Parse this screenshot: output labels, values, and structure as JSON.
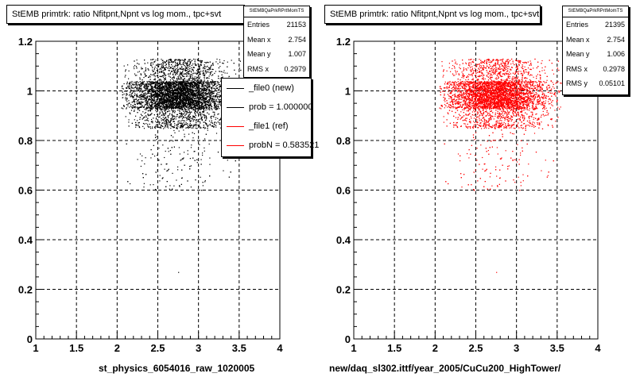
{
  "footer_text": "",
  "chart_data": [
    {
      "type": "scatter",
      "title": "StEMB primtrk: ratio Nfitpnt,Npnt vs log mom., tpc+svt",
      "xlabel": "st_physics_6054016_raw_1020005",
      "ylabel": "",
      "xlim": [
        1,
        4
      ],
      "ylim": [
        0,
        1.2
      ],
      "x_ticks": [
        "1",
        "1.5",
        "2",
        "2.5",
        "3",
        "3.5",
        "4"
      ],
      "y_ticks": [
        "0",
        "0.2",
        "0.4",
        "0.6",
        "0.8",
        "1",
        "1.2"
      ],
      "grid": true,
      "marker_color": "#000000",
      "distribution": {
        "x_range": [
          2.05,
          3.55
        ],
        "core_y": [
          0.93,
          1.04
        ],
        "band_y": [
          0.85,
          1.13
        ],
        "center_x": 2.75
      },
      "stats": {
        "name": "StEMBQaPrkRPrtMomTS",
        "rows": [
          {
            "label": "Entries",
            "value": "21153"
          },
          {
            "label": "Mean x",
            "value": "2.754"
          },
          {
            "label": "Mean y",
            "value": "1.007"
          },
          {
            "label": "RMS x",
            "value": "0.2979"
          }
        ]
      },
      "legend": [
        {
          "label": "_file0 (new)",
          "color": "#000000"
        },
        {
          "label": "prob = 1.000000",
          "color": "#000000"
        },
        {
          "label": "_file1 (ref)",
          "color": "#ff0000"
        },
        {
          "label": "probN = 0.583521",
          "color": "#ff0000"
        }
      ]
    },
    {
      "type": "scatter",
      "title": "StEMB primtrk: ratio Nfitpnt,Npnt vs log mom., tpc+svt",
      "xlabel": "new/daq_sl302.ittf/year_2005/CuCu200_HighTower/",
      "ylabel": "",
      "xlim": [
        1,
        4
      ],
      "ylim": [
        0,
        1.2
      ],
      "x_ticks": [
        "1",
        "1.5",
        "2",
        "2.5",
        "3",
        "3.5",
        "4"
      ],
      "y_ticks": [
        "0",
        "0.2",
        "0.4",
        "0.6",
        "0.8",
        "1",
        "1.2"
      ],
      "grid": true,
      "marker_color": "#ff0000",
      "distribution": {
        "x_range": [
          2.05,
          3.55
        ],
        "core_y": [
          0.93,
          1.04
        ],
        "band_y": [
          0.85,
          1.13
        ],
        "center_x": 2.75
      },
      "stats": {
        "name": "StEMBQaPrkRPrtMomTS",
        "rows": [
          {
            "label": "Entries",
            "value": "21395"
          },
          {
            "label": "Mean x",
            "value": "2.754"
          },
          {
            "label": "Mean y",
            "value": "1.006"
          },
          {
            "label": "RMS x",
            "value": "0.2978"
          },
          {
            "label": "RMS y",
            "value": "0.05101"
          }
        ]
      }
    }
  ]
}
